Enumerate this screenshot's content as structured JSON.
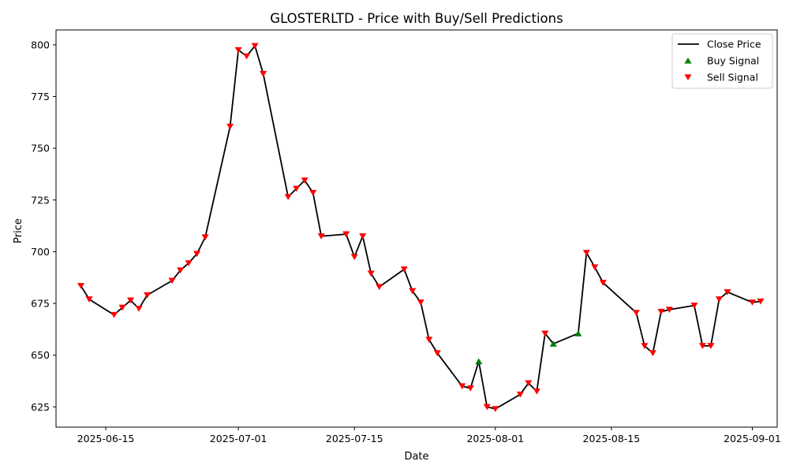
{
  "chart_data": {
    "type": "line",
    "title": "GLOSTERLTD - Price with Buy/Sell Predictions",
    "xlabel": "Date",
    "ylabel": "Price",
    "ylim": [
      615.2,
      807.2
    ],
    "xlim": [
      "2025-06-09",
      "2025-09-04"
    ],
    "grid": false,
    "legend_position": "top-right",
    "x_ticks": [
      "2025-06-15",
      "2025-07-01",
      "2025-07-15",
      "2025-08-01",
      "2025-08-15",
      "2025-09-01"
    ],
    "y_ticks": [
      625,
      650,
      675,
      700,
      725,
      750,
      775,
      800
    ],
    "colors": {
      "line": "#000000",
      "buy": "#008000",
      "sell": "#ff0000"
    },
    "series": [
      {
        "name": "Close Price",
        "type": "line",
        "points": [
          [
            "2025-06-12",
            683.5
          ],
          [
            "2025-06-13",
            677
          ],
          [
            "2025-06-16",
            669.5
          ],
          [
            "2025-06-17",
            673
          ],
          [
            "2025-06-18",
            676.5
          ],
          [
            "2025-06-19",
            672.5
          ],
          [
            "2025-06-20",
            679
          ],
          [
            "2025-06-23",
            686
          ],
          [
            "2025-06-24",
            691
          ],
          [
            "2025-06-25",
            694.5
          ],
          [
            "2025-06-26",
            699
          ],
          [
            "2025-06-27",
            707
          ],
          [
            "2025-06-30",
            760.5
          ],
          [
            "2025-07-01",
            797.5
          ],
          [
            "2025-07-02",
            794.5
          ],
          [
            "2025-07-03",
            799.5
          ],
          [
            "2025-07-04",
            786
          ],
          [
            "2025-07-07",
            726.5
          ],
          [
            "2025-07-08",
            730.5
          ],
          [
            "2025-07-09",
            734.5
          ],
          [
            "2025-07-10",
            728.5
          ],
          [
            "2025-07-11",
            707.5
          ],
          [
            "2025-07-14",
            708.5
          ],
          [
            "2025-07-15",
            697.5
          ],
          [
            "2025-07-16",
            707.5
          ],
          [
            "2025-07-17",
            689.5
          ],
          [
            "2025-07-18",
            683
          ],
          [
            "2025-07-21",
            691.5
          ],
          [
            "2025-07-22",
            681
          ],
          [
            "2025-07-23",
            675.5
          ],
          [
            "2025-07-24",
            657.5
          ],
          [
            "2025-07-25",
            651
          ],
          [
            "2025-07-28",
            635
          ],
          [
            "2025-07-29",
            634
          ],
          [
            "2025-07-30",
            647
          ],
          [
            "2025-07-31",
            625
          ],
          [
            "2025-08-01",
            624
          ],
          [
            "2025-08-04",
            631
          ],
          [
            "2025-08-05",
            636.5
          ],
          [
            "2025-08-06",
            632.5
          ],
          [
            "2025-08-07",
            660.5
          ],
          [
            "2025-08-08",
            655.5
          ],
          [
            "2025-08-11",
            660.5
          ],
          [
            "2025-08-12",
            699.5
          ],
          [
            "2025-08-13",
            692.5
          ],
          [
            "2025-08-14",
            685
          ],
          [
            "2025-08-18",
            670.5
          ],
          [
            "2025-08-19",
            654.5
          ],
          [
            "2025-08-20",
            651
          ],
          [
            "2025-08-21",
            671
          ],
          [
            "2025-08-22",
            672
          ],
          [
            "2025-08-25",
            674
          ],
          [
            "2025-08-26",
            654.5
          ],
          [
            "2025-08-27",
            654.5
          ],
          [
            "2025-08-28",
            677
          ],
          [
            "2025-08-29",
            680.5
          ],
          [
            "2025-09-01",
            675.5
          ],
          [
            "2025-09-02",
            676
          ]
        ]
      },
      {
        "name": "Buy Signal",
        "type": "scatter",
        "marker": "triangle-up",
        "points": [
          [
            "2025-07-30",
            647
          ],
          [
            "2025-08-08",
            655.5
          ],
          [
            "2025-08-11",
            660.5
          ]
        ]
      },
      {
        "name": "Sell Signal",
        "type": "scatter",
        "marker": "triangle-down",
        "points": [
          [
            "2025-06-12",
            683.5
          ],
          [
            "2025-06-13",
            677
          ],
          [
            "2025-06-16",
            669.5
          ],
          [
            "2025-06-17",
            673
          ],
          [
            "2025-06-18",
            676.5
          ],
          [
            "2025-06-19",
            672.5
          ],
          [
            "2025-06-20",
            679
          ],
          [
            "2025-06-23",
            686
          ],
          [
            "2025-06-24",
            691
          ],
          [
            "2025-06-25",
            694.5
          ],
          [
            "2025-06-26",
            699
          ],
          [
            "2025-06-27",
            707
          ],
          [
            "2025-06-30",
            760.5
          ],
          [
            "2025-07-01",
            797.5
          ],
          [
            "2025-07-02",
            794.5
          ],
          [
            "2025-07-03",
            799.5
          ],
          [
            "2025-07-04",
            786
          ],
          [
            "2025-07-07",
            726.5
          ],
          [
            "2025-07-08",
            730.5
          ],
          [
            "2025-07-09",
            734.5
          ],
          [
            "2025-07-10",
            728.5
          ],
          [
            "2025-07-11",
            707.5
          ],
          [
            "2025-07-14",
            708.5
          ],
          [
            "2025-07-15",
            697.5
          ],
          [
            "2025-07-16",
            707.5
          ],
          [
            "2025-07-17",
            689.5
          ],
          [
            "2025-07-18",
            683
          ],
          [
            "2025-07-21",
            691.5
          ],
          [
            "2025-07-22",
            681
          ],
          [
            "2025-07-23",
            675.5
          ],
          [
            "2025-07-24",
            657.5
          ],
          [
            "2025-07-25",
            651
          ],
          [
            "2025-07-28",
            635
          ],
          [
            "2025-07-29",
            634
          ],
          [
            "2025-07-31",
            625
          ],
          [
            "2025-08-01",
            624
          ],
          [
            "2025-08-04",
            631
          ],
          [
            "2025-08-05",
            636.5
          ],
          [
            "2025-08-06",
            632.5
          ],
          [
            "2025-08-07",
            660.5
          ],
          [
            "2025-08-12",
            699.5
          ],
          [
            "2025-08-13",
            692.5
          ],
          [
            "2025-08-14",
            685
          ],
          [
            "2025-08-18",
            670.5
          ],
          [
            "2025-08-19",
            654.5
          ],
          [
            "2025-08-20",
            651
          ],
          [
            "2025-08-21",
            671
          ],
          [
            "2025-08-22",
            672
          ],
          [
            "2025-08-25",
            674
          ],
          [
            "2025-08-26",
            654.5
          ],
          [
            "2025-08-27",
            654.5
          ],
          [
            "2025-08-28",
            677
          ],
          [
            "2025-08-29",
            680.5
          ],
          [
            "2025-09-01",
            675.5
          ],
          [
            "2025-09-02",
            676
          ]
        ]
      }
    ]
  }
}
